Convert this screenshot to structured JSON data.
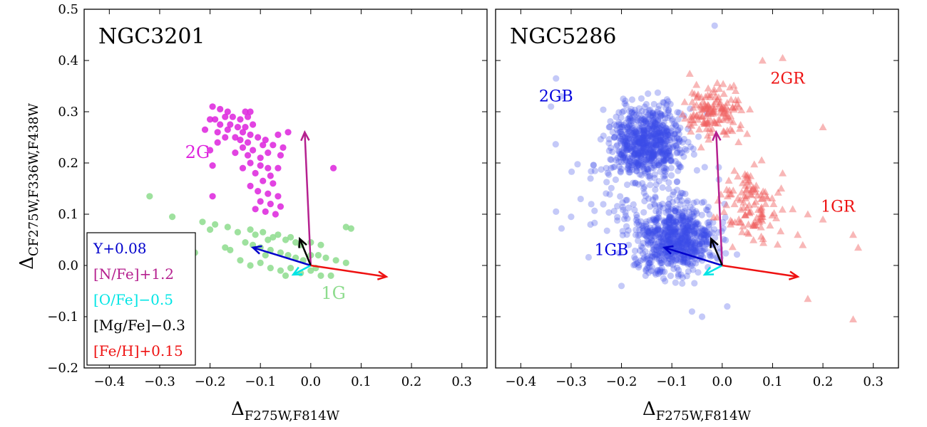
{
  "figure": {
    "ylabel_main": "Δ",
    "ylabel_sub": "CF275W,F336W,F438W",
    "xlabel_main": "Δ",
    "xlabel_sub": "F275W,F814W"
  },
  "chart_data": [
    {
      "type": "scatter",
      "title": "NGC3201",
      "xlabel": "ΔF275W,F814W",
      "ylabel": "ΔCF275W,F336W,F438W",
      "xlim": [
        -0.45,
        0.35
      ],
      "ylim": [
        -0.2,
        0.5
      ],
      "xticks": [
        -0.4,
        -0.3,
        -0.2,
        -0.1,
        0.0,
        0.1,
        0.2,
        0.3
      ],
      "xtick_labels": [
        "−0.4",
        "−0.3",
        "−0.2",
        "−0.1",
        "0.0",
        "0.1",
        "0.2",
        "0.3"
      ],
      "yticks": [
        -0.2,
        -0.1,
        0.0,
        0.1,
        0.2,
        0.3,
        0.4,
        0.5
      ],
      "ytick_labels": [
        "−0.2",
        "−0.1",
        "0.0",
        "0.1",
        "0.2",
        "0.3",
        "0.4",
        "0.5"
      ],
      "series": [
        {
          "name": "2G",
          "label_text": "2G",
          "color": "#dd22dd",
          "marker": "circle",
          "points": [
            [
              -0.195,
              0.31
            ],
            [
              -0.18,
              0.305
            ],
            [
              -0.165,
              0.3
            ],
            [
              -0.13,
              0.3
            ],
            [
              -0.12,
              0.3
            ],
            [
              -0.2,
              0.285
            ],
            [
              -0.19,
              0.285
            ],
            [
              -0.17,
              0.29
            ],
            [
              -0.155,
              0.29
            ],
            [
              -0.14,
              0.285
            ],
            [
              -0.125,
              0.29
            ],
            [
              -0.18,
              0.275
            ],
            [
              -0.16,
              0.275
            ],
            [
              -0.145,
              0.27
            ],
            [
              -0.13,
              0.27
            ],
            [
              -0.115,
              0.275
            ],
            [
              -0.21,
              0.265
            ],
            [
              -0.185,
              0.26
            ],
            [
              -0.165,
              0.265
            ],
            [
              -0.135,
              0.26
            ],
            [
              -0.12,
              0.255
            ],
            [
              -0.045,
              0.26
            ],
            [
              -0.17,
              0.25
            ],
            [
              -0.15,
              0.25
            ],
            [
              -0.14,
              0.245
            ],
            [
              -0.105,
              0.25
            ],
            [
              -0.09,
              0.245
            ],
            [
              -0.065,
              0.255
            ],
            [
              -0.185,
              0.24
            ],
            [
              -0.125,
              0.24
            ],
            [
              -0.095,
              0.235
            ],
            [
              -0.135,
              0.23
            ],
            [
              -0.115,
              0.225
            ],
            [
              -0.075,
              0.235
            ],
            [
              -0.055,
              0.23
            ],
            [
              -0.2,
              0.225
            ],
            [
              -0.15,
              0.22
            ],
            [
              -0.125,
              0.215
            ],
            [
              -0.1,
              0.21
            ],
            [
              -0.085,
              0.22
            ],
            [
              -0.06,
              0.215
            ],
            [
              -0.12,
              0.2
            ],
            [
              -0.1,
              0.195
            ],
            [
              -0.085,
              0.19
            ],
            [
              -0.065,
              0.19
            ],
            [
              -0.195,
              0.195
            ],
            [
              -0.135,
              0.19
            ],
            [
              -0.11,
              0.18
            ],
            [
              -0.08,
              0.175
            ],
            [
              0.045,
              0.19
            ],
            [
              -0.095,
              0.165
            ],
            [
              -0.075,
              0.16
            ],
            [
              -0.12,
              0.155
            ],
            [
              -0.105,
              0.145
            ],
            [
              -0.085,
              0.14
            ],
            [
              -0.065,
              0.135
            ],
            [
              -0.1,
              0.125
            ],
            [
              -0.08,
              0.12
            ],
            [
              -0.06,
              0.115
            ],
            [
              -0.11,
              0.11
            ],
            [
              -0.09,
              0.105
            ],
            [
              -0.07,
              0.1
            ],
            [
              -0.195,
              0.135
            ]
          ]
        },
        {
          "name": "1G",
          "label_text": "1G",
          "color": "#8ddc8d",
          "marker": "circle",
          "points": [
            [
              -0.32,
              0.135
            ],
            [
              -0.275,
              0.095
            ],
            [
              -0.215,
              0.085
            ],
            [
              -0.19,
              0.08
            ],
            [
              -0.2,
              0.07
            ],
            [
              -0.165,
              0.075
            ],
            [
              -0.145,
              0.065
            ],
            [
              -0.12,
              0.07
            ],
            [
              -0.11,
              0.06
            ],
            [
              -0.095,
              0.065
            ],
            [
              -0.085,
              0.05
            ],
            [
              -0.075,
              0.055
            ],
            [
              -0.065,
              0.06
            ],
            [
              -0.05,
              0.05
            ],
            [
              -0.04,
              0.055
            ],
            [
              -0.03,
              0.045
            ],
            [
              -0.02,
              0.04
            ],
            [
              0.0,
              0.045
            ],
            [
              0.02,
              0.04
            ],
            [
              0.07,
              0.075
            ],
            [
              0.08,
              0.072
            ],
            [
              -0.13,
              0.045
            ],
            [
              -0.115,
              0.04
            ],
            [
              -0.1,
              0.035
            ],
            [
              -0.08,
              0.03
            ],
            [
              -0.06,
              0.025
            ],
            [
              -0.045,
              0.02
            ],
            [
              -0.03,
              0.015
            ],
            [
              -0.015,
              0.01
            ],
            [
              0.0,
              0.02
            ],
            [
              0.015,
              0.02
            ],
            [
              0.03,
              0.015
            ],
            [
              0.05,
              0.01
            ],
            [
              0.07,
              0.005
            ],
            [
              -0.23,
              0.025
            ],
            [
              -0.16,
              0.03
            ],
            [
              -0.14,
              0.01
            ],
            [
              -0.12,
              0.0
            ],
            [
              -0.1,
              0.005
            ],
            [
              -0.08,
              -0.005
            ],
            [
              -0.06,
              -0.01
            ],
            [
              -0.04,
              -0.005
            ],
            [
              -0.02,
              -0.015
            ],
            [
              0.0,
              -0.01
            ],
            [
              0.02,
              -0.02
            ],
            [
              0.04,
              -0.02
            ],
            [
              -0.05,
              -0.02
            ],
            [
              0.01,
              -0.005
            ],
            [
              -0.09,
              0.02
            ],
            [
              -0.17,
              0.035
            ]
          ]
        }
      ],
      "arrows": [
        {
          "label": "Y+0.08",
          "color": "#0000cc",
          "dx": -0.115,
          "dy": 0.035
        },
        {
          "label": "[N/Fe]+1.2",
          "color": "#b5208f",
          "dx": -0.012,
          "dy": 0.26
        },
        {
          "label": "[O/Fe]−0.5",
          "color": "#00e5e5",
          "dx": -0.035,
          "dy": -0.018
        },
        {
          "label": "[Mg/Fe]−0.3",
          "color": "#000000",
          "dx": -0.022,
          "dy": 0.052
        },
        {
          "label": "[Fe/H]+0.15",
          "color": "#ee1111",
          "dx": 0.15,
          "dy": -0.022
        }
      ],
      "legend": {
        "placement": "lower-left",
        "entries": [
          {
            "text": "Y+0.08",
            "color": "#0000cc"
          },
          {
            "text": "[N/Fe]+1.2",
            "color": "#b5208f"
          },
          {
            "text": "[O/Fe]−0.5",
            "color": "#00e5e5"
          },
          {
            "text": "[Mg/Fe]−0.3",
            "color": "#000000"
          },
          {
            "text": "[Fe/H]+0.15",
            "color": "#ee1111"
          }
        ]
      }
    },
    {
      "type": "scatter",
      "title": "NGC5286",
      "xlabel": "ΔF275W,F814W",
      "xlim": [
        -0.45,
        0.35
      ],
      "ylim": [
        -0.2,
        0.5
      ],
      "xticks": [
        -0.4,
        -0.3,
        -0.2,
        -0.1,
        0.0,
        0.1,
        0.2,
        0.3
      ],
      "xtick_labels": [
        "−0.4",
        "−0.3",
        "−0.2",
        "−0.1",
        "0.0",
        "0.1",
        "0.2",
        "0.3"
      ],
      "yticks": [
        -0.2,
        -0.1,
        0.0,
        0.1,
        0.2,
        0.3,
        0.4,
        0.5
      ],
      "group_labels": [
        {
          "text": "2GB",
          "color": "#0000dd",
          "x": -0.33,
          "y": 0.32
        },
        {
          "text": "1GB",
          "color": "#0000dd",
          "x": -0.22,
          "y": 0.02
        },
        {
          "text": "2GR",
          "color": "#ee1111",
          "x": 0.13,
          "y": 0.355
        },
        {
          "text": "1GR",
          "color": "#ee1111",
          "x": 0.23,
          "y": 0.105
        }
      ],
      "series": [
        {
          "name": "1GB+2GB",
          "color": "#3b4de8",
          "marker": "circle",
          "opacity": 0.3,
          "generated": {
            "seed": 11,
            "count": 1500,
            "regions": [
              {
                "share": 0.45,
                "xmin": -0.25,
                "xmax": -0.05,
                "ymin": 0.14,
                "ymax": 0.34
              },
              {
                "share": 0.45,
                "xmin": -0.2,
                "xmax": 0.02,
                "ymin": -0.05,
                "ymax": 0.15
              },
              {
                "share": 0.1,
                "xmin": -0.34,
                "xmax": 0.05,
                "ymin": -0.08,
                "ymax": 0.36
              }
            ]
          },
          "points": [
            [
              -0.015,
              0.468
            ],
            [
              -0.33,
              0.365
            ],
            [
              -0.32,
              0.33
            ],
            [
              -0.34,
              0.31
            ],
            [
              -0.33,
              0.105
            ],
            [
              -0.3,
              0.095
            ],
            [
              -0.06,
              -0.09
            ],
            [
              -0.04,
              -0.1
            ],
            [
              0.01,
              -0.08
            ],
            [
              -0.2,
              -0.04
            ]
          ]
        },
        {
          "name": "1GR+2GR",
          "color": "#f06060",
          "marker": "triangle",
          "opacity": 0.45,
          "generated": {
            "seed": 23,
            "count": 260,
            "regions": [
              {
                "share": 0.55,
                "xmin": -0.1,
                "xmax": 0.07,
                "ymin": 0.22,
                "ymax": 0.38
              },
              {
                "share": 0.45,
                "xmin": -0.03,
                "xmax": 0.14,
                "ymin": 0.0,
                "ymax": 0.24
              }
            ]
          },
          "points": [
            [
              0.12,
              0.405
            ],
            [
              0.08,
              0.4
            ],
            [
              0.2,
              0.27
            ],
            [
              0.12,
              0.18
            ],
            [
              0.14,
              0.11
            ],
            [
              0.17,
              0.1
            ],
            [
              0.2,
              0.09
            ],
            [
              0.26,
              0.06
            ],
            [
              0.27,
              0.035
            ],
            [
              0.17,
              -0.065
            ],
            [
              0.26,
              -0.105
            ],
            [
              0.15,
              0.06
            ],
            [
              0.16,
              0.04
            ]
          ]
        }
      ],
      "arrows": [
        {
          "label": "Y+0.08",
          "color": "#0000cc",
          "dx": -0.115,
          "dy": 0.035
        },
        {
          "label": "[N/Fe]+1.2",
          "color": "#b5208f",
          "dx": -0.012,
          "dy": 0.26
        },
        {
          "label": "[O/Fe]−0.5",
          "color": "#00e5e5",
          "dx": -0.035,
          "dy": -0.018
        },
        {
          "label": "[Mg/Fe]−0.3",
          "color": "#000000",
          "dx": -0.022,
          "dy": 0.052
        },
        {
          "label": "[Fe/H]+0.15",
          "color": "#ee1111",
          "dx": 0.15,
          "dy": -0.022
        }
      ]
    }
  ]
}
